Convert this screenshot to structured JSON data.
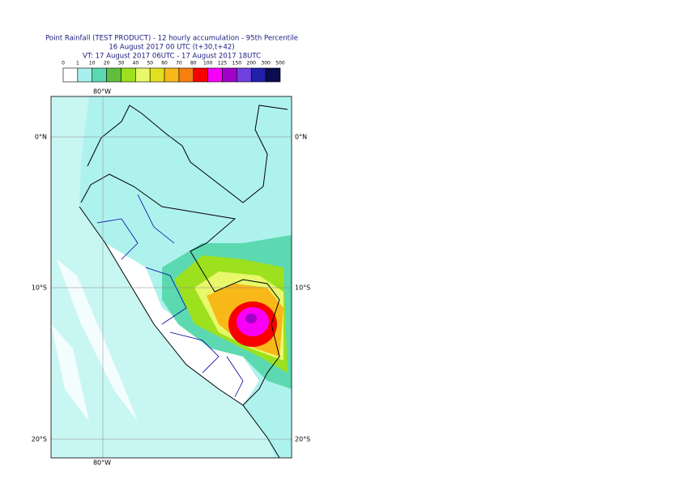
{
  "header": {
    "lines": [
      "Point Rainfall (TEST PRODUCT) - 12 hourly accumulation - 95th Percentile",
      "16 August 2017 00 UTC (t+30,t+42)",
      "VT: 17 August 2017 06UTC - 17 August 2017 18UTC"
    ]
  },
  "colorbar": {
    "boundaries": [
      0,
      1,
      10,
      20,
      30,
      40,
      50,
      60,
      70,
      80,
      100,
      125,
      150,
      200,
      300,
      500
    ],
    "colors": [
      "#ffffff",
      "#a8f0ee",
      "#5cd9b0",
      "#5fbf3c",
      "#9ce01e",
      "#e8f86a",
      "#e0e020",
      "#f8b818",
      "#f88010",
      "#f80000",
      "#f800f8",
      "#a000c8",
      "#7040e0",
      "#2020a8",
      "#0c0c50"
    ]
  },
  "map": {
    "lon_labels": [
      "80°W"
    ],
    "lat_labels": [
      "0°N",
      "10°S",
      "20°S"
    ]
  }
}
